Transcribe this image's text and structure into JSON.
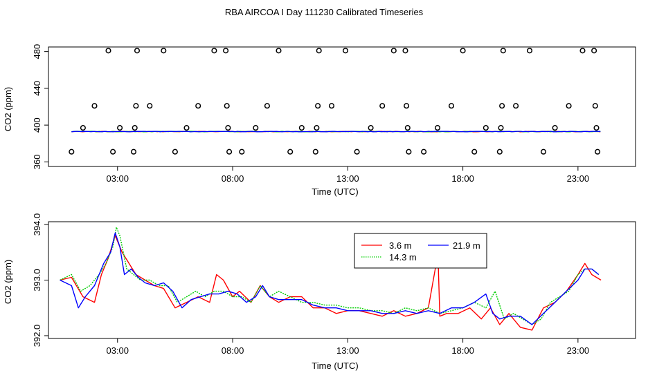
{
  "title": "RBA AIRCOA I  Day 111230  Calibrated Timeseries",
  "chart_data": [
    {
      "type": "scatter",
      "xlabel": "Time (UTC)",
      "ylabel": "CO2 (ppm)",
      "xlim": [
        0,
        25.5
      ],
      "ylim": [
        355,
        485
      ],
      "x_ticks": [
        {
          "value": 3,
          "label": "03:00"
        },
        {
          "value": 8,
          "label": "08:00"
        },
        {
          "value": 13,
          "label": "13:00"
        },
        {
          "value": 18,
          "label": "18:00"
        },
        {
          "value": 23,
          "label": "23:00"
        }
      ],
      "y_ticks": [
        {
          "value": 360,
          "label": "360"
        },
        {
          "value": 400,
          "label": "400"
        },
        {
          "value": 440,
          "label": "440"
        },
        {
          "value": 480,
          "label": "480"
        }
      ],
      "points": [
        [
          1.0,
          371
        ],
        [
          1.5,
          397
        ],
        [
          2.0,
          421
        ],
        [
          2.6,
          481
        ],
        [
          2.8,
          371
        ],
        [
          3.1,
          397
        ],
        [
          3.7,
          371
        ],
        [
          3.75,
          397
        ],
        [
          3.8,
          421
        ],
        [
          3.85,
          481
        ],
        [
          4.4,
          421
        ],
        [
          5.0,
          481
        ],
        [
          5.5,
          371
        ],
        [
          6.0,
          397
        ],
        [
          6.5,
          421
        ],
        [
          7.2,
          481
        ],
        [
          7.7,
          481
        ],
        [
          7.75,
          421
        ],
        [
          7.8,
          397
        ],
        [
          7.85,
          371
        ],
        [
          8.4,
          371
        ],
        [
          9.0,
          397
        ],
        [
          9.5,
          421
        ],
        [
          10.0,
          481
        ],
        [
          10.5,
          371
        ],
        [
          11.0,
          397
        ],
        [
          11.6,
          371
        ],
        [
          11.65,
          397
        ],
        [
          11.7,
          421
        ],
        [
          11.75,
          481
        ],
        [
          12.3,
          421
        ],
        [
          12.9,
          481
        ],
        [
          13.4,
          371
        ],
        [
          14.0,
          397
        ],
        [
          14.5,
          421
        ],
        [
          15.0,
          481
        ],
        [
          15.5,
          481
        ],
        [
          15.55,
          421
        ],
        [
          15.6,
          397
        ],
        [
          15.65,
          371
        ],
        [
          16.3,
          371
        ],
        [
          16.9,
          397
        ],
        [
          17.5,
          421
        ],
        [
          18.0,
          481
        ],
        [
          18.5,
          371
        ],
        [
          19.0,
          397
        ],
        [
          19.6,
          371
        ],
        [
          19.65,
          397
        ],
        [
          19.7,
          421
        ],
        [
          19.75,
          481
        ],
        [
          20.3,
          421
        ],
        [
          20.9,
          481
        ],
        [
          21.5,
          371
        ],
        [
          22.0,
          397
        ],
        [
          22.6,
          421
        ],
        [
          23.2,
          481
        ],
        [
          23.7,
          481
        ],
        [
          23.75,
          421
        ],
        [
          23.8,
          397
        ],
        [
          23.85,
          371
        ]
      ],
      "series": [
        {
          "name": "3.6 m",
          "color": "#ff0000",
          "value": 393.0
        },
        {
          "name": "14.3 m",
          "color": "#00cd00",
          "value": 393.0
        },
        {
          "name": "21.9 m",
          "color": "#0000ff",
          "value": 393.0
        }
      ]
    },
    {
      "type": "line",
      "xlabel": "Time (UTC)",
      "ylabel": "CO2 (ppm)",
      "xlim": [
        0,
        25.5
      ],
      "ylim": [
        391.95,
        394.05
      ],
      "x_ticks": [
        {
          "value": 3,
          "label": "03:00"
        },
        {
          "value": 8,
          "label": "08:00"
        },
        {
          "value": 13,
          "label": "13:00"
        },
        {
          "value": 18,
          "label": "18:00"
        },
        {
          "value": 23,
          "label": "23:00"
        }
      ],
      "y_ticks": [
        {
          "value": 392.0,
          "label": "392.0"
        },
        {
          "value": 393.0,
          "label": "393.0"
        },
        {
          "value": 394.0,
          "label": "394.0"
        }
      ],
      "legend": {
        "position": "top-center",
        "entries": [
          "3.6 m",
          "14.3 m",
          "21.9 m"
        ]
      },
      "series": [
        {
          "name": "3.6 m",
          "color": "#ff0000",
          "x": [
            0.5,
            1.0,
            1.5,
            2.0,
            2.3,
            2.6,
            2.9,
            3.2,
            3.5,
            3.8,
            4.2,
            4.6,
            5.0,
            5.5,
            6.0,
            6.5,
            7.0,
            7.3,
            7.6,
            8.0,
            8.3,
            8.8,
            9.2,
            9.6,
            10.0,
            10.5,
            11.0,
            11.5,
            12.0,
            12.5,
            13.0,
            13.5,
            14.0,
            14.5,
            15.0,
            15.5,
            16.0,
            16.5,
            16.8,
            16.9,
            17.0,
            17.3,
            17.8,
            18.3,
            18.8,
            19.2,
            19.6,
            20.0,
            20.5,
            21.0,
            21.5,
            22.0,
            22.5,
            23.0,
            23.3,
            23.6,
            24.0
          ],
          "y": [
            393.0,
            393.05,
            392.7,
            392.6,
            393.1,
            393.4,
            393.8,
            393.5,
            393.3,
            393.1,
            393.0,
            392.9,
            392.85,
            392.5,
            392.6,
            392.7,
            392.6,
            393.1,
            393.0,
            392.7,
            392.8,
            392.6,
            392.9,
            392.7,
            392.6,
            392.7,
            392.7,
            392.5,
            392.5,
            392.4,
            392.45,
            392.45,
            392.4,
            392.35,
            392.45,
            392.35,
            392.4,
            392.5,
            393.2,
            393.7,
            392.35,
            392.4,
            392.4,
            392.5,
            392.3,
            392.5,
            392.2,
            392.4,
            392.15,
            392.1,
            392.5,
            392.6,
            392.8,
            393.1,
            393.3,
            393.1,
            393.0
          ]
        },
        {
          "name": "14.3 m",
          "color": "#00cd00",
          "x": [
            0.5,
            1.0,
            1.4,
            1.8,
            2.2,
            2.5,
            2.8,
            2.95,
            3.1,
            3.4,
            3.7,
            4.0,
            4.4,
            4.8,
            5.2,
            5.6,
            6.0,
            6.4,
            6.8,
            7.2,
            7.6,
            8.0,
            8.4,
            8.8,
            9.2,
            9.6,
            10.0,
            10.5,
            11.0,
            11.5,
            12.0,
            12.5,
            13.0,
            13.5,
            14.0,
            14.5,
            15.0,
            15.5,
            16.0,
            16.5,
            17.0,
            17.5,
            18.0,
            18.5,
            19.0,
            19.4,
            19.8,
            20.2,
            20.6,
            21.0,
            21.4,
            21.8,
            22.2,
            22.6,
            23.0,
            23.3,
            23.6,
            23.9
          ],
          "y": [
            393.0,
            393.1,
            392.8,
            392.9,
            393.1,
            393.3,
            393.6,
            393.95,
            393.8,
            393.2,
            393.1,
            393.0,
            393.0,
            392.9,
            392.9,
            392.6,
            392.7,
            392.8,
            392.7,
            392.8,
            392.8,
            392.7,
            392.7,
            392.6,
            392.9,
            392.7,
            392.8,
            392.7,
            392.6,
            392.6,
            392.55,
            392.55,
            392.5,
            392.5,
            392.45,
            392.45,
            392.4,
            392.5,
            392.45,
            392.5,
            392.4,
            392.45,
            392.5,
            392.6,
            392.5,
            392.8,
            392.3,
            392.4,
            392.3,
            392.2,
            392.3,
            392.6,
            392.7,
            392.8,
            393.1,
            393.2,
            393.2,
            393.1
          ]
        },
        {
          "name": "21.9 m",
          "color": "#0000ff",
          "x": [
            0.5,
            1.0,
            1.3,
            1.6,
            2.0,
            2.4,
            2.7,
            2.9,
            3.1,
            3.3,
            3.6,
            3.9,
            4.2,
            4.6,
            5.0,
            5.4,
            5.8,
            6.2,
            6.6,
            7.0,
            7.4,
            7.8,
            8.2,
            8.6,
            9.0,
            9.3,
            9.6,
            10.0,
            10.5,
            11.0,
            11.5,
            12.0,
            12.5,
            13.0,
            13.5,
            14.0,
            14.5,
            15.0,
            15.5,
            16.0,
            16.5,
            17.0,
            17.5,
            18.0,
            18.5,
            19.0,
            19.3,
            19.6,
            20.0,
            20.5,
            21.0,
            21.5,
            22.0,
            22.5,
            23.0,
            23.3,
            23.6,
            23.9
          ],
          "y": [
            393.0,
            392.9,
            392.5,
            392.7,
            392.9,
            393.3,
            393.5,
            393.85,
            393.6,
            393.1,
            393.2,
            393.05,
            392.95,
            392.9,
            392.95,
            392.8,
            392.5,
            392.65,
            392.7,
            392.75,
            392.75,
            392.8,
            392.75,
            392.6,
            392.7,
            392.9,
            392.7,
            392.65,
            392.65,
            392.65,
            392.55,
            392.5,
            392.5,
            392.45,
            392.45,
            392.45,
            392.4,
            392.4,
            392.45,
            392.4,
            392.45,
            392.4,
            392.5,
            392.5,
            392.6,
            392.75,
            392.4,
            392.3,
            392.35,
            392.35,
            392.2,
            392.4,
            392.6,
            392.8,
            393.0,
            393.2,
            393.2,
            393.1
          ]
        }
      ]
    }
  ]
}
